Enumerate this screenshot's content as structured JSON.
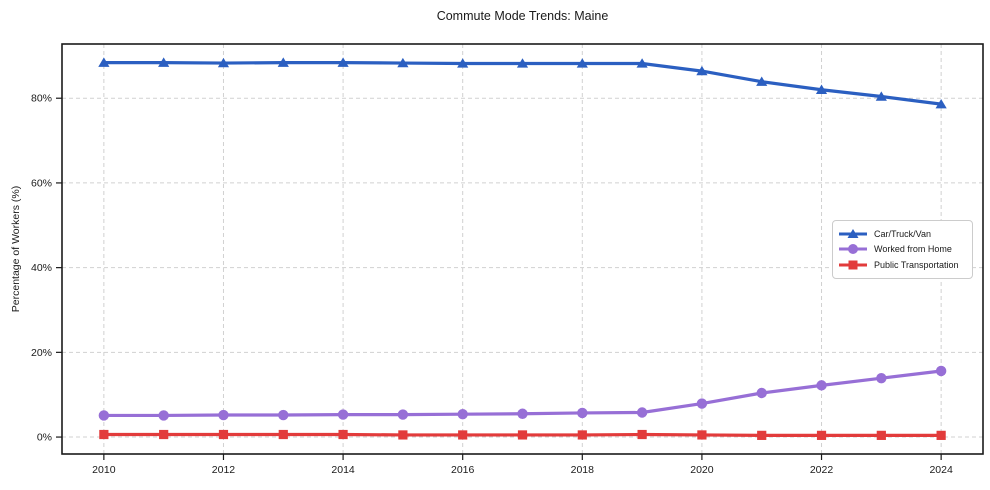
{
  "chart_data": {
    "type": "line",
    "title": "Commute Mode Trends: Maine",
    "xlabel": "",
    "x": [
      2010,
      2011,
      2012,
      2013,
      2014,
      2015,
      2016,
      2017,
      2018,
      2019,
      2020,
      2021,
      2022,
      2023,
      2024
    ],
    "series": [
      {
        "name": "Car/Truck/Van",
        "color": "#2b5fc1",
        "marker": "triangle",
        "values": [
          88.4,
          88.4,
          88.3,
          88.4,
          88.4,
          88.3,
          88.2,
          88.2,
          88.2,
          88.2,
          86.4,
          83.9,
          82.0,
          80.4,
          78.6
        ]
      },
      {
        "name": "Worked from Home",
        "color": "#976fd6",
        "marker": "circle",
        "values": [
          5.1,
          5.1,
          5.2,
          5.2,
          5.3,
          5.3,
          5.4,
          5.5,
          5.7,
          5.8,
          7.9,
          10.4,
          12.2,
          13.9,
          15.6
        ]
      },
      {
        "name": "Public Transportation",
        "color": "#e23b3b",
        "marker": "square",
        "values": [
          0.6,
          0.6,
          0.6,
          0.6,
          0.6,
          0.5,
          0.5,
          0.5,
          0.5,
          0.6,
          0.5,
          0.4,
          0.4,
          0.4,
          0.4
        ]
      }
    ],
    "x_axis": {
      "tick_values": [
        2010,
        2012,
        2014,
        2016,
        2018,
        2020,
        2022,
        2024
      ],
      "tick_labels": [
        "2010",
        "2012",
        "2014",
        "2016",
        "2018",
        "2020",
        "2022",
        "2024"
      ]
    },
    "y_axis": {
      "label": "Percentage of Workers (%)",
      "tick_values": [
        0,
        20,
        40,
        60,
        80
      ],
      "tick_labels": [
        "0%",
        "20%",
        "40%",
        "60%",
        "80%"
      ]
    },
    "xlim": [
      2009.3,
      2024.7
    ],
    "ylim": [
      -4.0,
      92.8
    ],
    "grid": true,
    "grid_color": "#cccccc",
    "spine_color": "#1a1a1a",
    "legend_position": "center right"
  }
}
